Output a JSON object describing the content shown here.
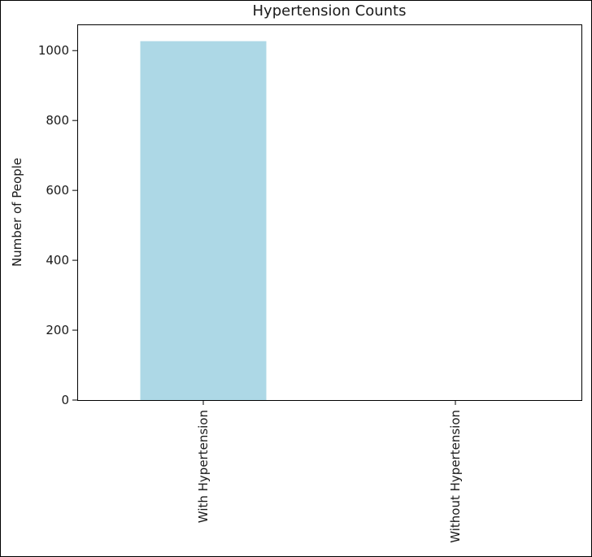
{
  "chart_data": {
    "type": "bar",
    "title": "Hypertension Counts",
    "xlabel": "",
    "ylabel": "Number of People",
    "categories": [
      "With Hypertension",
      "Without Hypertension"
    ],
    "values": [
      1027,
      0
    ],
    "ylim": [
      0,
      1075
    ],
    "yticks": [
      0,
      200,
      400,
      600,
      800,
      1000
    ],
    "grid": false,
    "bar_color": "#add8e6"
  }
}
